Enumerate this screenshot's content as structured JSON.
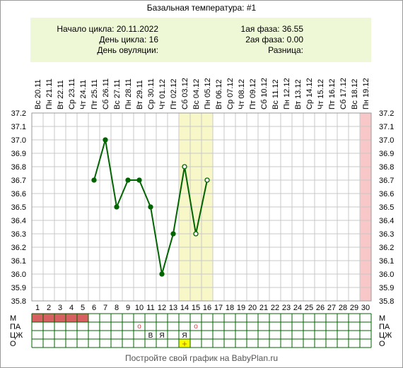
{
  "header": {
    "title": "Базальная температура: #1",
    "cycle_start_label": "Начало цикла: 20.11.2022",
    "cycle_day_label": "День цикла: 16",
    "ovulation_day_label": "День овуляции:",
    "phase1_label": "1ая фаза: 36.55",
    "phase2_label": "2ая фаза: 0.00",
    "difference_label": "Разница:"
  },
  "footer": {
    "text": "Постройте свой график на BabyPlan.ru"
  },
  "colors": {
    "line": "#006400",
    "grid": "#c8c8c8",
    "highlight_band": "#f7f7c8",
    "end_band": "#f8c8c8",
    "menstruation": "#d96060",
    "marker_o": "#ffff00"
  },
  "chart_data": {
    "type": "line",
    "title": "Базальная температура: #1",
    "x_days": [
      1,
      2,
      3,
      4,
      5,
      6,
      7,
      8,
      9,
      10,
      11,
      12,
      13,
      14,
      15,
      16,
      17,
      18,
      19,
      20,
      21,
      22,
      23,
      24,
      25,
      26,
      27,
      28,
      29,
      30
    ],
    "dates": [
      "Вс 20.11",
      "Пн 21.11",
      "Вт 22.11",
      "Ср 23.11",
      "Чт 24.11",
      "Пт 25.11",
      "Сб 26.11",
      "Вс 27.11",
      "Пн 28.11",
      "Вт 29.11",
      "Ср 30.11",
      "Чт 01.12",
      "Пт 02.12",
      "Сб 03.12",
      "Вс 04.12",
      "Пн 05.12",
      "Вт 06.12",
      "Ср 07.12",
      "Чт 08.12",
      "Пт 09.12",
      "Сб 10.12",
      "Вс 11.12",
      "Пн 12.12",
      "Вт 13.12",
      "Ср 14.12",
      "Чт 15.12",
      "Пт 16.12",
      "Сб 17.12",
      "Вс 18.12",
      "Пн 19.12"
    ],
    "y_ticks": [
      "37.2",
      "37.1",
      "37.0",
      "36.9",
      "36.8",
      "36.7",
      "36.6",
      "36.5",
      "36.4",
      "36.3",
      "36.2",
      "36.1",
      "36.0",
      "35.9",
      "35.8"
    ],
    "ylim": [
      35.8,
      37.2
    ],
    "series": [
      {
        "points": [
          {
            "day": 6,
            "temp": 36.7,
            "open": false
          },
          {
            "day": 7,
            "temp": 37.0,
            "open": false
          },
          {
            "day": 8,
            "temp": 36.5,
            "open": false
          },
          {
            "day": 9,
            "temp": 36.7,
            "open": false
          },
          {
            "day": 10,
            "temp": 36.7,
            "open": false
          },
          {
            "day": 11,
            "temp": 36.5,
            "open": false
          },
          {
            "day": 12,
            "temp": 36.0,
            "open": false
          },
          {
            "day": 13,
            "temp": 36.3,
            "open": false
          },
          {
            "day": 14,
            "temp": 36.8,
            "open": true
          },
          {
            "day": 15,
            "temp": 36.3,
            "open": true
          },
          {
            "day": 16,
            "temp": 36.7,
            "open": true
          }
        ]
      }
    ],
    "highlight_days": [
      14,
      15,
      16
    ],
    "end_band_day": 30,
    "grid": true,
    "bottom_rows": {
      "labels": [
        "М",
        "ПА",
        "ЦЖ",
        "О"
      ],
      "menstruation_days": [
        1,
        2,
        3,
        4,
        5
      ],
      "pa_marks": [
        {
          "day": 10,
          "text": "о"
        },
        {
          "day": 15,
          "text": "о"
        }
      ],
      "cz_marks": [
        {
          "day": 11,
          "text": "В"
        },
        {
          "day": 12,
          "text": "Я"
        },
        {
          "day": 14,
          "text": "Я"
        }
      ],
      "o_marks": [
        {
          "day": 14,
          "text": "+"
        }
      ]
    }
  }
}
